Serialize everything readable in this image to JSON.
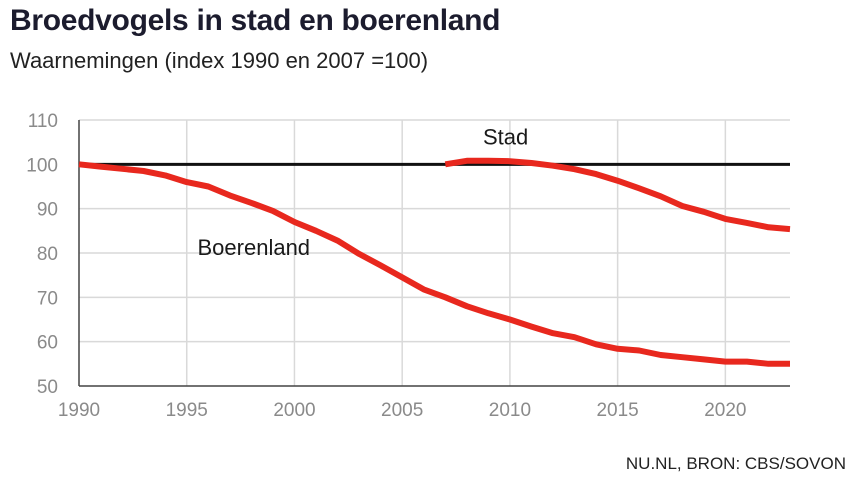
{
  "header": {
    "title": "Broedvogels in stad en boerenland",
    "subtitle": "Waarnemingen (index 1990 en 2007 =100)"
  },
  "footer": {
    "source": "NU.NL, BRON: CBS/SOVON"
  },
  "colors": {
    "series": "#e8281e",
    "reference_line": "#111111",
    "grid": "#d9d9d9",
    "axis": "#444444",
    "tick_text": "#8a8a8a"
  },
  "chart_data": {
    "type": "line",
    "title": "Broedvogels in stad en boerenland",
    "subtitle": "Waarnemingen (index 1990 en 2007 =100)",
    "xlabel": "",
    "ylabel": "",
    "xlim": [
      1990,
      2023
    ],
    "ylim": [
      50,
      110
    ],
    "x_ticks": [
      1990,
      1995,
      2000,
      2005,
      2010,
      2015,
      2020
    ],
    "y_ticks": [
      50,
      60,
      70,
      80,
      90,
      100,
      110
    ],
    "grid": "vertical and horizontal",
    "legend": "none (direct labels)",
    "reference_line": {
      "y": 100
    },
    "series": [
      {
        "name": "Boerenland",
        "x": [
          1990,
          1991,
          1992,
          1993,
          1994,
          1995,
          1996,
          1997,
          1998,
          1999,
          2000,
          2001,
          2002,
          2003,
          2004,
          2005,
          2006,
          2007,
          2008,
          2009,
          2010,
          2011,
          2012,
          2013,
          2014,
          2015,
          2016,
          2017,
          2018,
          2019,
          2020,
          2021,
          2022,
          2023
        ],
        "y": [
          100,
          99.5,
          99,
          98.5,
          97.5,
          96,
          95,
          93,
          91.3,
          89.5,
          87,
          85,
          82.8,
          79.8,
          77.2,
          74.5,
          71.8,
          70,
          68,
          66.4,
          65,
          63.4,
          61.9,
          61,
          59.4,
          58.4,
          58,
          57,
          56.5,
          56,
          55.5,
          55.5,
          55,
          55
        ]
      },
      {
        "name": "Stad",
        "x": [
          2007,
          2008,
          2009,
          2010,
          2011,
          2012,
          2013,
          2014,
          2015,
          2016,
          2017,
          2018,
          2019,
          2020,
          2021,
          2022,
          2023
        ],
        "y": [
          100,
          100.8,
          100.8,
          100.7,
          100.3,
          99.7,
          98.9,
          97.8,
          96.3,
          94.6,
          92.8,
          90.6,
          89.3,
          87.7,
          86.8,
          85.8,
          85.4
        ]
      }
    ]
  }
}
